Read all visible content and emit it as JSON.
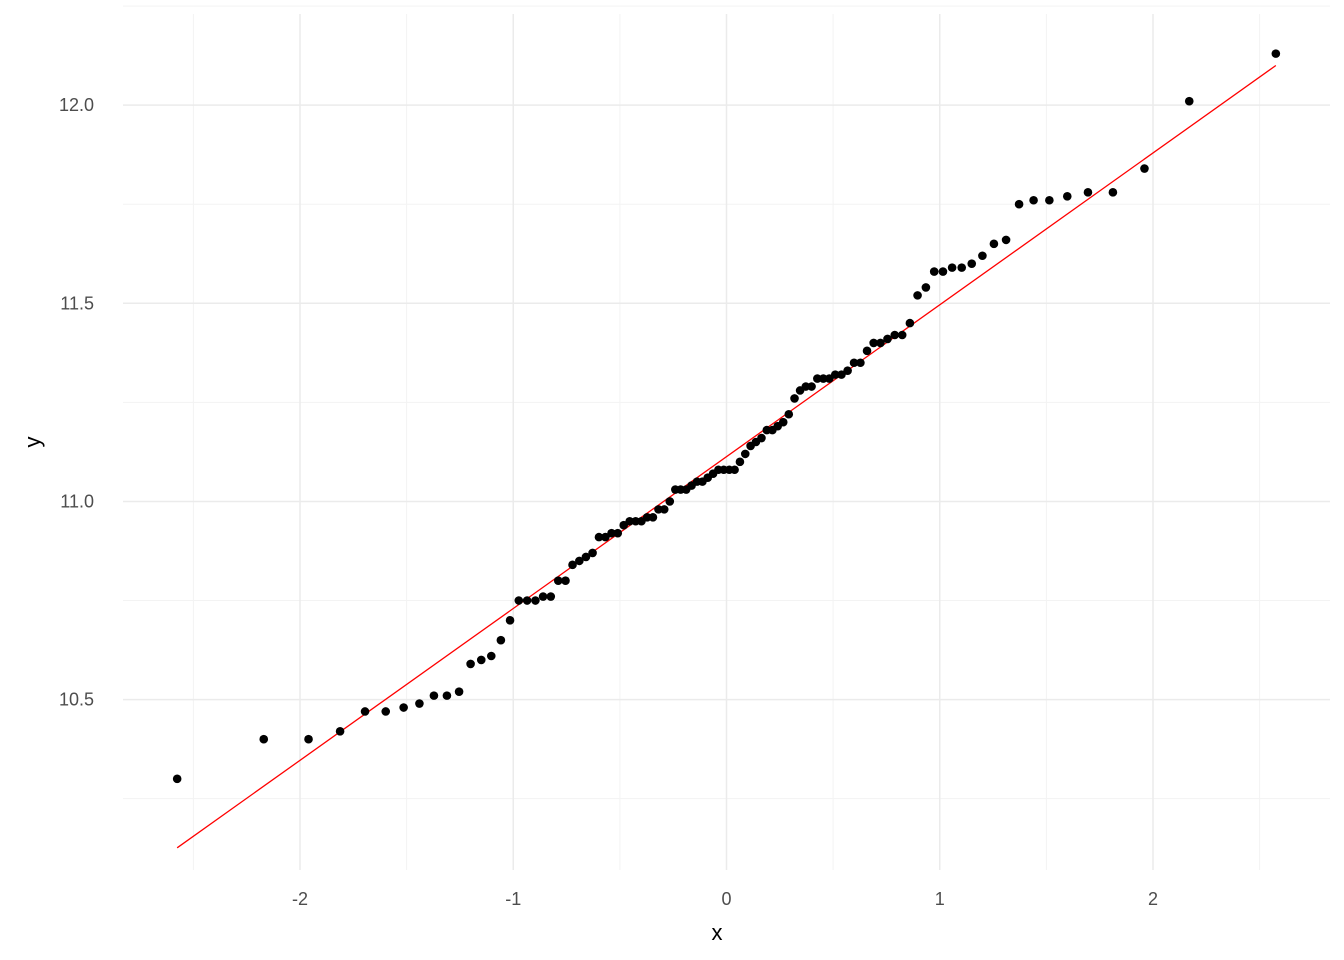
{
  "chart_data": {
    "type": "scatter",
    "title": "",
    "xlabel": "x",
    "ylabel": "y",
    "xlim": [
      -2.83,
      2.83
    ],
    "ylim": [
      10.07,
      12.23
    ],
    "x_ticks": [
      -2,
      -1,
      0,
      1,
      2
    ],
    "x_tick_labels": [
      "-2",
      "-1",
      "0",
      "1",
      "2"
    ],
    "y_ticks": [
      10.5,
      11.0,
      11.5,
      12.0
    ],
    "y_tick_labels": [
      "10.5",
      "11.0",
      "11.5",
      "12.0"
    ],
    "grid": true,
    "colors": {
      "points": "#000000",
      "line": "#ff0000",
      "grid": "#ebebeb"
    },
    "points": {
      "x": [
        -2.576,
        -2.17,
        -1.96,
        -1.812,
        -1.695,
        -1.598,
        -1.514,
        -1.44,
        -1.372,
        -1.311,
        -1.254,
        -1.2,
        -1.15,
        -1.103,
        -1.058,
        -1.015,
        -0.974,
        -0.935,
        -0.896,
        -0.86,
        -0.824,
        -0.789,
        -0.755,
        -0.722,
        -0.69,
        -0.659,
        -0.628,
        -0.598,
        -0.568,
        -0.539,
        -0.51,
        -0.482,
        -0.454,
        -0.426,
        -0.399,
        -0.372,
        -0.345,
        -0.319,
        -0.292,
        -0.266,
        -0.24,
        -0.215,
        -0.189,
        -0.164,
        -0.138,
        -0.113,
        -0.088,
        -0.063,
        -0.038,
        -0.013,
        0.013,
        0.038,
        0.063,
        0.088,
        0.113,
        0.138,
        0.164,
        0.189,
        0.215,
        0.24,
        0.266,
        0.292,
        0.319,
        0.345,
        0.372,
        0.399,
        0.426,
        0.454,
        0.482,
        0.51,
        0.539,
        0.568,
        0.598,
        0.628,
        0.659,
        0.69,
        0.722,
        0.755,
        0.789,
        0.824,
        0.86,
        0.896,
        0.935,
        0.974,
        1.015,
        1.058,
        1.103,
        1.15,
        1.2,
        1.254,
        1.311,
        1.372,
        1.44,
        1.514,
        1.598,
        1.695,
        1.812,
        1.96,
        2.17,
        2.576
      ],
      "y": [
        10.3,
        10.4,
        10.4,
        10.42,
        10.47,
        10.47,
        10.48,
        10.49,
        10.51,
        10.51,
        10.52,
        10.59,
        10.6,
        10.61,
        10.65,
        10.7,
        10.75,
        10.75,
        10.75,
        10.76,
        10.76,
        10.8,
        10.8,
        10.84,
        10.85,
        10.86,
        10.87,
        10.91,
        10.91,
        10.92,
        10.92,
        10.94,
        10.95,
        10.95,
        10.95,
        10.96,
        10.96,
        10.98,
        10.98,
        11.0,
        11.03,
        11.03,
        11.03,
        11.04,
        11.05,
        11.05,
        11.06,
        11.07,
        11.08,
        11.08,
        11.08,
        11.08,
        11.1,
        11.12,
        11.14,
        11.15,
        11.16,
        11.18,
        11.18,
        11.19,
        11.2,
        11.22,
        11.26,
        11.28,
        11.29,
        11.29,
        11.31,
        11.31,
        11.31,
        11.32,
        11.32,
        11.33,
        11.35,
        11.35,
        11.38,
        11.4,
        11.4,
        11.41,
        11.42,
        11.42,
        11.45,
        11.52,
        11.54,
        11.58,
        11.58,
        11.59,
        11.59,
        11.6,
        11.62,
        11.65,
        11.66,
        11.75,
        11.76,
        11.76,
        11.77,
        11.78,
        11.78,
        11.84,
        12.01,
        12.13
      ]
    },
    "reference_line": {
      "x": [
        -2.576,
        2.576
      ],
      "y": [
        10.126,
        12.1
      ]
    }
  }
}
